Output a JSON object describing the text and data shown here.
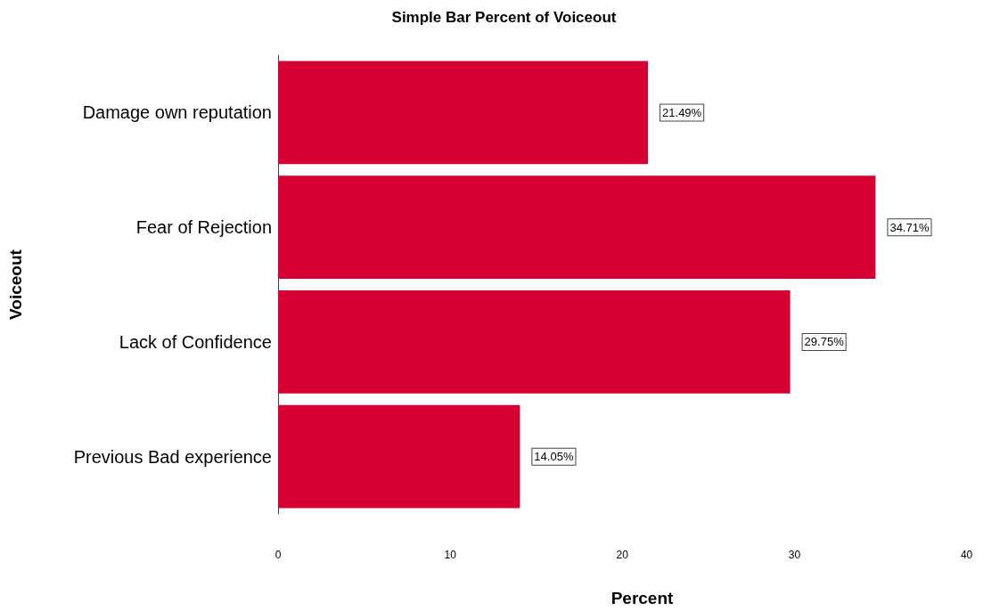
{
  "chart_data": {
    "type": "bar",
    "orientation": "horizontal",
    "title": "Simple Bar Percent of Voiceout",
    "xlabel": "Percent",
    "ylabel": "Voiceout",
    "categories": [
      "Damage own reputation",
      "Fear of Rejection",
      "Lack of Confidence",
      "Previous Bad experience"
    ],
    "values": [
      21.49,
      34.71,
      29.75,
      14.05
    ],
    "value_labels": [
      "21.49%",
      "34.71%",
      "29.75%",
      "14.05%"
    ],
    "color": "#d70033",
    "xlim": [
      0,
      42.3
    ],
    "xticks": [
      0,
      10,
      20,
      30,
      40
    ],
    "grid": false
  }
}
